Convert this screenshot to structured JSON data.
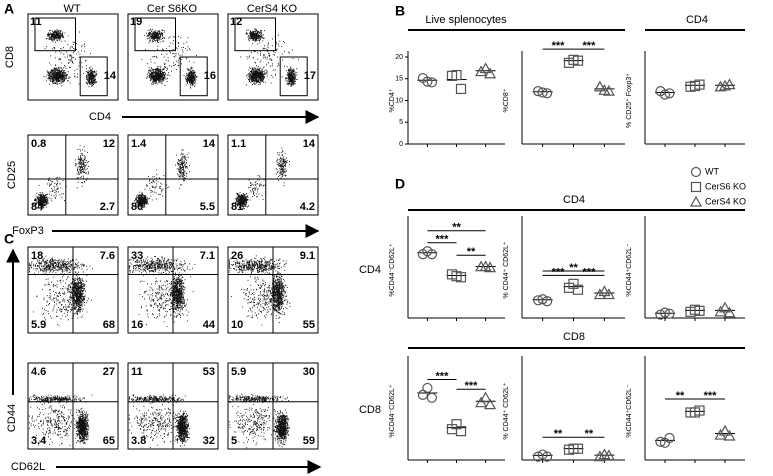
{
  "panel_a": {
    "label": "A",
    "columns": [
      "WT",
      "Cer S6KO",
      "CerS4 KO"
    ],
    "top": {
      "x_label": "CD4",
      "y_label": "CD8",
      "gates": [
        [
          11,
          14
        ],
        [
          19,
          16
        ],
        [
          12,
          17
        ]
      ]
    },
    "bottom": {
      "x_label": "FoxP3",
      "y_label": "CD25",
      "quadrants": [
        [
          0.8,
          12,
          84,
          2.7
        ],
        [
          1.4,
          14,
          80,
          5.5
        ],
        [
          1.1,
          14,
          81,
          4.2
        ]
      ]
    }
  },
  "panel_c": {
    "label": "C",
    "x_label": "CD62L",
    "y_label": "CD44",
    "rows": [
      [
        [
          18,
          7.6,
          5.9,
          68
        ],
        [
          33,
          7.1,
          16,
          44
        ],
        [
          26,
          9.1,
          10,
          55
        ]
      ],
      [
        [
          4.6,
          27,
          3.4,
          65
        ],
        [
          11,
          53,
          3.8,
          32
        ],
        [
          5.9,
          30,
          5,
          59
        ]
      ]
    ]
  },
  "legend": [
    "WT",
    "CerS6 KO",
    "CerS4 KO"
  ],
  "marker_color": "#555555",
  "panel_b": {
    "label": "B",
    "headers": [
      "Live splenocytes",
      "CD4"
    ],
    "charts": [
      {
        "type": "scatter",
        "y_label": "%CD4⁺",
        "ylim": [
          0,
          20
        ],
        "yticks": [
          0,
          5,
          10,
          15,
          20
        ],
        "groups": [
          [
            15.5,
            14,
            14.5
          ],
          [
            16,
            15.5,
            13
          ],
          [
            17,
            17,
            16.5
          ]
        ],
        "stars": []
      },
      {
        "type": "scatter",
        "y_label": "%CD8⁺",
        "ylim": [
          0,
          20
        ],
        "groups": [
          [
            12.5,
            11.5,
            12
          ],
          [
            19,
            19,
            19.5
          ],
          [
            13.5,
            12,
            12.5
          ]
        ],
        "stars": [
          "***",
          "***"
        ]
      },
      {
        "type": "scatter",
        "y_label": "% CD25⁺ Foxp3⁺",
        "ylim": [
          0,
          20
        ],
        "groups": [
          [
            12.5,
            11,
            12
          ],
          [
            13.5,
            13,
            14
          ],
          [
            13.5,
            13,
            14
          ]
        ],
        "stars": []
      }
    ]
  },
  "panel_d": {
    "label": "D",
    "headers": [
      "CD4",
      "CD8"
    ],
    "rows": [
      "CD4",
      "CD8"
    ],
    "charts": [
      {
        "type": "scatter",
        "y_label": "%CD44⁻CD62L⁺",
        "ylim": [
          0,
          100
        ],
        "groups": [
          [
            68,
            68,
            68
          ],
          [
            47,
            42,
            44
          ],
          [
            55,
            52,
            54
          ]
        ],
        "stars": [
          "***",
          "**",
          "**"
        ]
      },
      {
        "type": "scatter",
        "y_label": "% CD44⁺ CD62L⁺",
        "ylim": [
          0,
          100
        ],
        "groups": [
          [
            20,
            18,
            19
          ],
          [
            33,
            34,
            31
          ],
          [
            26,
            26,
            26
          ]
        ],
        "stars": [
          "***",
          "**",
          "***"
        ]
      },
      {
        "type": "scatter",
        "y_label": "%CD44⁺CD62L⁻",
        "ylim": [
          0,
          100
        ],
        "groups": [
          [
            5,
            4,
            6
          ],
          [
            8,
            7,
            9
          ],
          [
            8,
            9,
            7
          ]
        ],
        "stars": []
      },
      {
        "type": "scatter",
        "y_label": "%CD44⁻CD62L⁺",
        "ylim": [
          0,
          100
        ],
        "groups": [
          [
            68,
            72,
            65
          ],
          [
            33,
            35,
            31
          ],
          [
            60,
            62,
            58
          ]
        ],
        "stars": [
          "***",
          "***"
        ]
      },
      {
        "type": "scatter",
        "y_label": "% CD44⁺ CD62L⁺",
        "ylim": [
          0,
          100
        ],
        "groups": [
          [
            5,
            4,
            5
          ],
          [
            12,
            10,
            13
          ],
          [
            5,
            4,
            6
          ]
        ],
        "stars": [
          "**",
          "**"
        ]
      },
      {
        "type": "scatter",
        "y_label": "%CD44⁺CD62L⁻",
        "ylim": [
          0,
          100
        ],
        "groups": [
          [
            20,
            16,
            24
          ],
          [
            50,
            47,
            52
          ],
          [
            27,
            28,
            26
          ]
        ],
        "stars": [
          "**",
          "***"
        ]
      }
    ]
  }
}
